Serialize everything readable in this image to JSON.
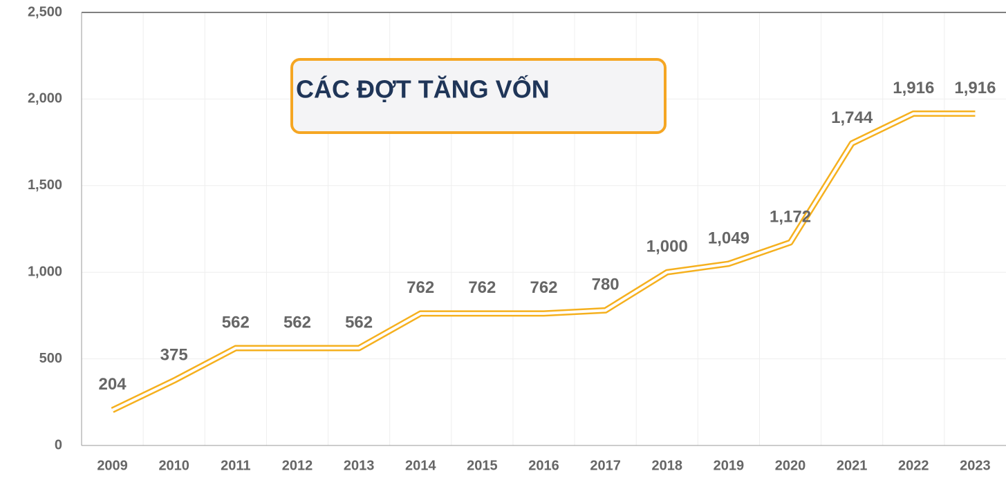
{
  "chart_data": {
    "type": "line",
    "title": "CÁC ĐỢT TĂNG VỐN",
    "categories": [
      "2009",
      "2010",
      "2011",
      "2012",
      "2013",
      "2014",
      "2015",
      "2016",
      "2017",
      "2018",
      "2019",
      "2020",
      "2021",
      "2022",
      "2023"
    ],
    "values": [
      204,
      375,
      562,
      562,
      562,
      762,
      762,
      762,
      780,
      1000,
      1049,
      1172,
      1744,
      1916,
      1916
    ],
    "value_labels": [
      "204",
      "375",
      "562",
      "562",
      "562",
      "762",
      "762",
      "762",
      "780",
      "1,000",
      "1,049",
      "1,172",
      "1,744",
      "1,916",
      "1,916"
    ],
    "color": "#f5b01e",
    "ylim": [
      0,
      2500
    ],
    "yticks": [
      0,
      500,
      {
        "value": 1000,
        "label": "1,000"
      },
      {
        "value": 1500,
        "label": "1,500"
      },
      {
        "value": 2000,
        "label": "2,000"
      },
      {
        "value": 2500,
        "label": "2,500"
      }
    ],
    "grid": true
  }
}
